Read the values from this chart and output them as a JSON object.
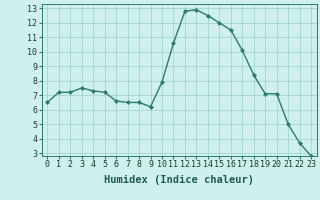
{
  "x": [
    0,
    1,
    2,
    3,
    4,
    5,
    6,
    7,
    8,
    9,
    10,
    11,
    12,
    13,
    14,
    15,
    16,
    17,
    18,
    19,
    20,
    21,
    22,
    23
  ],
  "y": [
    6.5,
    7.2,
    7.2,
    7.5,
    7.3,
    7.2,
    6.6,
    6.5,
    6.5,
    6.2,
    7.9,
    10.6,
    12.8,
    12.9,
    12.5,
    12.0,
    11.5,
    10.1,
    8.4,
    7.1,
    7.1,
    5.0,
    3.7,
    2.8
  ],
  "xlabel": "Humidex (Indice chaleur)",
  "ylim": [
    3,
    13
  ],
  "xlim": [
    -0.5,
    23.5
  ],
  "yticks": [
    3,
    4,
    5,
    6,
    7,
    8,
    9,
    10,
    11,
    12,
    13
  ],
  "xticks": [
    0,
    1,
    2,
    3,
    4,
    5,
    6,
    7,
    8,
    9,
    10,
    11,
    12,
    13,
    14,
    15,
    16,
    17,
    18,
    19,
    20,
    21,
    22,
    23
  ],
  "line_color": "#2a7d6d",
  "marker_color": "#2a7d6d",
  "bg_color": "#cff0ec",
  "grid_color": "#a0d8d0",
  "xlabel_fontsize": 7.5,
  "tick_fontsize": 6,
  "marker_size": 2.0
}
